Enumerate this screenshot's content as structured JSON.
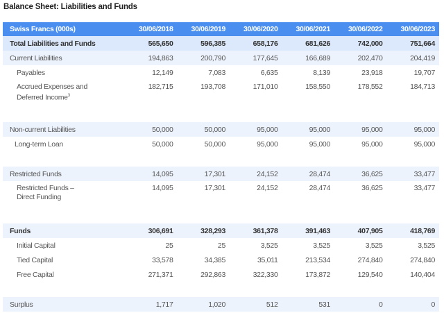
{
  "title": "Balance Sheet: Liabilities and Funds",
  "header": [
    "Swiss Francs (000s)",
    "30/06/2018",
    "30/06/2019",
    "30/06/2020",
    "30/06/2021",
    "30/06/2022",
    "30/06/2023"
  ],
  "rows": [
    {
      "label": "Total Liabilities and Funds",
      "values": [
        "565,650",
        "596,385",
        "658,176",
        "681,626",
        "742,000",
        "751,664"
      ]
    },
    {
      "label": "Current Liabilities",
      "values": [
        "194,863",
        "200,790",
        "177,645",
        "166,689",
        "202,470",
        "204,419"
      ]
    },
    {
      "label": "Payables",
      "values": [
        "12,149",
        "7,083",
        "6,635",
        "8,139",
        "23,918",
        "19,707"
      ]
    },
    {
      "label": "Accrued Expenses and Deferred Income",
      "footnote": "3",
      "values": [
        "182,715",
        "193,708",
        "171,010",
        "158,550",
        "178,552",
        "184,713"
      ]
    },
    {
      "label": "Non-current Liabilities",
      "values": [
        "50,000",
        "50,000",
        "95,000",
        "95,000",
        "95,000",
        "95,000"
      ]
    },
    {
      "label": "Long-term Loan",
      "values": [
        "50,000",
        "50,000",
        "95,000",
        "95,000",
        "95,000",
        "95,000"
      ]
    },
    {
      "label": "Restricted Funds",
      "values": [
        "14,095",
        "17,301",
        "24,152",
        "28,474",
        "36,625",
        "33,477"
      ]
    },
    {
      "label": "Restricted Funds – Direct Funding",
      "values": [
        "14,095",
        "17,301",
        "24,152",
        "28,474",
        "36,625",
        "33,477"
      ]
    },
    {
      "label": "Funds",
      "values": [
        "306,691",
        "328,293",
        "361,378",
        "391,463",
        "407,905",
        "418,769"
      ]
    },
    {
      "label": "Initial Capital",
      "values": [
        "25",
        "25",
        "3,525",
        "3,525",
        "3,525",
        "3,525"
      ]
    },
    {
      "label": "Tied Capital",
      "values": [
        "33,578",
        "34,385",
        "35,011",
        "213,534",
        "274,840",
        "274,840"
      ]
    },
    {
      "label": "Free Capital",
      "values": [
        "271,371",
        "292,863",
        "322,330",
        "173,872",
        "129,540",
        "140,404"
      ]
    },
    {
      "label": "Surplus",
      "values": [
        "1,717",
        "1,020",
        "512",
        "531",
        "0",
        "0"
      ]
    }
  ],
  "colors": {
    "header": "#4a8ff0",
    "total": "#dce8fb",
    "section": "#edf3fd"
  }
}
